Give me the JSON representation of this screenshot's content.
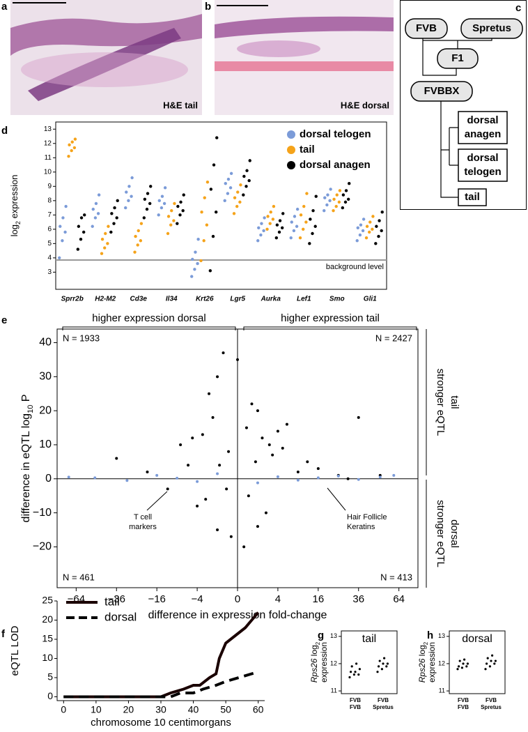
{
  "panel_labels": [
    "a",
    "b",
    "c",
    "d",
    "e",
    "f",
    "g",
    "h"
  ],
  "images": [
    {
      "caption": "H&E tail"
    },
    {
      "caption": "H&E dorsal"
    }
  ],
  "diagram": {
    "nodes": [
      {
        "label": "FVB"
      },
      {
        "label": "Spretus"
      },
      {
        "label": "F1"
      },
      {
        "label": "FVBBX"
      },
      {
        "label": [
          "dorsal",
          "anagen"
        ]
      },
      {
        "label": [
          "dorsal",
          "telogen"
        ]
      },
      {
        "label": "tail"
      }
    ]
  },
  "chart_data": [
    {
      "type": "strip",
      "y_label": [
        "log",
        "2",
        " expression"
      ],
      "categories": [
        "Sprr2b",
        "H2-M2",
        "Cd3e",
        "Il34",
        "Krt26",
        "Lgr5",
        "Aurka",
        "Lef1",
        "Smo",
        "Gli1"
      ],
      "series": [
        {
          "name": "dorsal telogen",
          "color": "#7b9bd8",
          "values": [
            [
              4.0,
              5.2,
              5.8,
              6.2,
              6.8,
              7.6
            ],
            [
              6.2,
              6.8,
              7.1,
              7.4,
              7.8,
              8.4
            ],
            [
              7.5,
              8.0,
              8.3,
              8.6,
              9.0,
              9.6
            ],
            [
              7.0,
              7.5,
              7.8,
              8.0,
              8.3,
              8.9
            ],
            [
              2.7,
              3.2,
              3.6,
              3.9,
              4.4,
              5.3
            ],
            [
              8.0,
              8.5,
              8.9,
              9.2,
              9.5,
              9.9
            ],
            [
              5.2,
              5.6,
              5.9,
              6.1,
              6.4,
              6.8
            ],
            [
              5.4,
              5.9,
              6.2,
              6.5,
              6.9,
              7.4
            ],
            [
              7.3,
              7.7,
              8.0,
              8.2,
              8.4,
              8.8
            ],
            [
              5.2,
              5.6,
              5.9,
              6.1,
              6.3,
              6.7
            ]
          ]
        },
        {
          "name": "tail",
          "color": "#f5a31a",
          "values": [
            [
              11.1,
              11.5,
              11.7,
              11.9,
              12.1,
              12.3
            ],
            [
              4.3,
              4.7,
              5.0,
              5.3,
              5.7,
              6.2
            ],
            [
              4.4,
              4.9,
              5.2,
              5.5,
              5.9,
              6.4
            ],
            [
              5.7,
              6.3,
              6.6,
              6.9,
              7.3,
              7.8
            ],
            [
              3.8,
              5.2,
              6.3,
              7.2,
              8.2,
              9.3
            ],
            [
              7.1,
              7.6,
              7.9,
              8.2,
              8.6,
              9.1
            ],
            [
              6.0,
              6.4,
              6.7,
              6.9,
              7.2,
              7.6
            ],
            [
              5.4,
              6.0,
              6.5,
              7.0,
              7.6,
              8.5
            ],
            [
              7.3,
              7.6,
              7.9,
              8.1,
              8.4,
              8.7
            ],
            [
              5.4,
              5.8,
              6.0,
              6.2,
              6.5,
              6.9
            ]
          ]
        },
        {
          "name": "dorsal anagen",
          "color": "#000000",
          "values": [
            [
              4.6,
              5.3,
              5.8,
              6.2,
              6.8,
              7.0
            ],
            [
              5.8,
              6.4,
              6.8,
              7.1,
              7.5,
              8.0
            ],
            [
              6.8,
              7.4,
              7.8,
              8.1,
              8.5,
              9.0
            ],
            [
              6.4,
              7.0,
              7.3,
              7.6,
              7.9,
              8.4
            ],
            [
              3.1,
              5.5,
              7.2,
              8.8,
              10.5,
              12.4
            ],
            [
              8.4,
              9.0,
              9.4,
              9.7,
              10.1,
              10.8
            ],
            [
              5.4,
              5.8,
              6.1,
              6.3,
              6.6,
              7.1
            ],
            [
              5.0,
              5.7,
              6.2,
              6.7,
              7.3,
              8.3
            ],
            [
              7.5,
              7.9,
              8.1,
              8.4,
              8.7,
              9.2
            ],
            [
              5.0,
              5.5,
              5.9,
              6.2,
              6.6,
              7.2
            ]
          ]
        }
      ],
      "ylim": [
        1.8,
        13.5
      ],
      "yticks": [
        3,
        4,
        5,
        6,
        7,
        8,
        9,
        10,
        11,
        12,
        13
      ],
      "reference_line": {
        "value": 3.85,
        "label": "background level",
        "color": "#999999"
      },
      "legend": "top-right"
    },
    {
      "type": "scatter",
      "x_label": "difference in expression fold-change",
      "y_label": [
        "difference in eQTL log",
        "10",
        " P"
      ],
      "xscale": "signed-sqrt",
      "xlim": [
        -80,
        80
      ],
      "xticks": [
        {
          "value": -64,
          "label": "−64"
        },
        {
          "value": -36,
          "label": "−36"
        },
        {
          "value": -16,
          "label": "−16"
        },
        {
          "value": -4,
          "label": "−4"
        },
        0,
        4,
        16,
        36,
        64
      ],
      "ylim": [
        -32,
        44
      ],
      "yticks": [
        {
          "value": -20,
          "label": "−20"
        },
        {
          "value": -10,
          "label": "−10"
        },
        0,
        10,
        20,
        30,
        40
      ],
      "series": [
        {
          "color": "#000000",
          "x": [
            -36,
            -20,
            -12,
            -8,
            -6,
            -4,
            -3,
            -2,
            -1.5,
            -1,
            -0.5,
            -0.2,
            0,
            0.2,
            0.5,
            1,
            1.5,
            2,
            3,
            4,
            6,
            9,
            12,
            16,
            25,
            36,
            -1,
            1,
            0.3,
            -0.3,
            0.8,
            -0.8,
            2.5,
            -2.5,
            0.1,
            -0.1,
            5,
            -5,
            30,
            50
          ],
          "y": [
            6,
            2,
            -3,
            10,
            4,
            -8,
            13,
            25,
            18,
            30,
            37,
            8,
            35,
            15,
            22,
            20,
            12,
            -10,
            7,
            14,
            16,
            2,
            5,
            3,
            1,
            18,
            -15,
            -14,
            -5,
            -3,
            5,
            4,
            10,
            -6,
            -20,
            -17,
            9,
            12,
            0,
            1
          ]
        },
        {
          "color": "#7b9bd8",
          "x": [
            -70,
            -50,
            -30,
            -16,
            -9,
            -4,
            -1,
            1,
            4,
            9,
            16,
            25,
            36,
            50,
            60
          ],
          "y": [
            0.5,
            0.3,
            -0.5,
            1,
            0.2,
            -0.8,
            1.5,
            -1.2,
            0.6,
            -0.4,
            0.3,
            0.8,
            -0.2,
            0.5,
            1
          ]
        }
      ],
      "counts": [
        "N = 1933",
        "N = 2427",
        "N = 461",
        "N = 413"
      ],
      "callouts": [
        [
          "T cell",
          "markers"
        ],
        [
          "Hair Follicle",
          "Keratins"
        ]
      ],
      "top_labels": [
        "higher expression dorsal",
        "higher expression tail"
      ],
      "side_labels": [
        [
          "stronger eQTL",
          "tail"
        ],
        [
          "stronger eQTL",
          "dorsal"
        ]
      ]
    },
    {
      "type": "line",
      "x_label": "chromosome 10 centimorgans",
      "y_label": "eQTL LOD",
      "xlim": [
        -2,
        62
      ],
      "xticks": [
        0,
        10,
        20,
        30,
        40,
        50,
        60
      ],
      "ylim": [
        -1,
        25
      ],
      "yticks": [
        0,
        5,
        10,
        15,
        20,
        25
      ],
      "series": [
        {
          "name": "tail",
          "color": "#1a0000",
          "dash": false,
          "x": [
            0,
            10,
            20,
            30,
            33,
            37,
            40,
            42,
            45,
            47,
            48,
            50,
            53,
            56,
            58,
            60
          ],
          "values": [
            0,
            0,
            0,
            0,
            1,
            2,
            3,
            3,
            5,
            6,
            10,
            14,
            16,
            18,
            20,
            22
          ]
        },
        {
          "name": "dorsal",
          "color": "#000000",
          "dash": true,
          "x": [
            0,
            10,
            20,
            30,
            33,
            36,
            40,
            43,
            47,
            50,
            54,
            58,
            60
          ],
          "values": [
            0,
            0,
            0,
            0,
            0,
            1,
            1,
            2,
            3,
            4,
            5,
            6,
            6.5
          ]
        }
      ],
      "legend": "top-left"
    },
    {
      "type": "strip",
      "title": "tail",
      "y_label": [
        "Rps26",
        " log",
        "2",
        "expression"
      ],
      "categories": [
        [
          "FVB",
          "FVB"
        ],
        [
          "FVB",
          "Spretus"
        ]
      ],
      "series": [
        {
          "color": "#000000",
          "values": [
            [
              11.5,
              11.6,
              11.6,
              11.7,
              11.7,
              11.8,
              11.9,
              12.0
            ],
            [
              11.7,
              11.8,
              11.9,
              11.9,
              12.0,
              12.0,
              12.1,
              12.2
            ]
          ]
        }
      ],
      "ylim": [
        10.9,
        13.2
      ],
      "yticks": [
        11,
        12,
        13
      ]
    },
    {
      "type": "strip",
      "title": "dorsal",
      "y_label": [
        "Rps26",
        " log",
        "2",
        "expression"
      ],
      "categories": [
        [
          "FVB",
          "FVB"
        ],
        [
          "FVB",
          "Spretus"
        ]
      ],
      "series": [
        {
          "color": "#000000",
          "values": [
            [
              11.8,
              11.85,
              11.9,
              11.9,
              12.0,
              12.0,
              12.1,
              12.15
            ],
            [
              11.8,
              11.9,
              12.0,
              12.0,
              12.1,
              12.1,
              12.2,
              12.3
            ]
          ]
        }
      ],
      "ylim": [
        10.9,
        13.2
      ],
      "yticks": [
        11,
        12,
        13
      ]
    }
  ]
}
